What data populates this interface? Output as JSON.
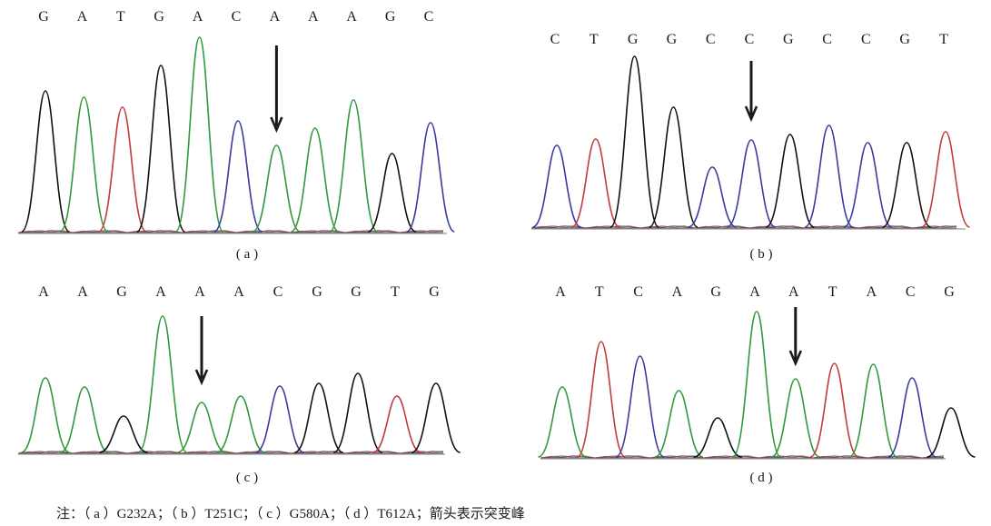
{
  "panels": [
    {
      "id": "a",
      "label": "( a )",
      "sequence": [
        "G",
        "A",
        "T",
        "G",
        "A",
        "C",
        "A",
        "A",
        "A",
        "G",
        "C"
      ],
      "mutation": "G232A"
    },
    {
      "id": "b",
      "label": "( b )",
      "sequence": [
        "C",
        "T",
        "G",
        "G",
        "C",
        "C",
        "G",
        "C",
        "C",
        "G",
        "T"
      ],
      "mutation": "T251C"
    },
    {
      "id": "c",
      "label": "( c )",
      "sequence": [
        "A",
        "A",
        "G",
        "A",
        "A",
        "A",
        "C",
        "G",
        "G",
        "T",
        "G"
      ],
      "mutation": "G580A"
    },
    {
      "id": "d",
      "label": "( d )",
      "sequence": [
        "A",
        "T",
        "C",
        "A",
        "G",
        "A",
        "A",
        "T",
        "A",
        "C",
        "G"
      ],
      "mutation": "T612A"
    }
  ],
  "note": "注：（ a ）G232A；（ b ）T251C；（ c ）G580A；（ d ）T612A；箭头表示突变峰",
  "colors": {
    "A": "#2f9a3c",
    "C": "#3a3aa0",
    "G": "#111111",
    "T": "#c23a3a"
  }
}
